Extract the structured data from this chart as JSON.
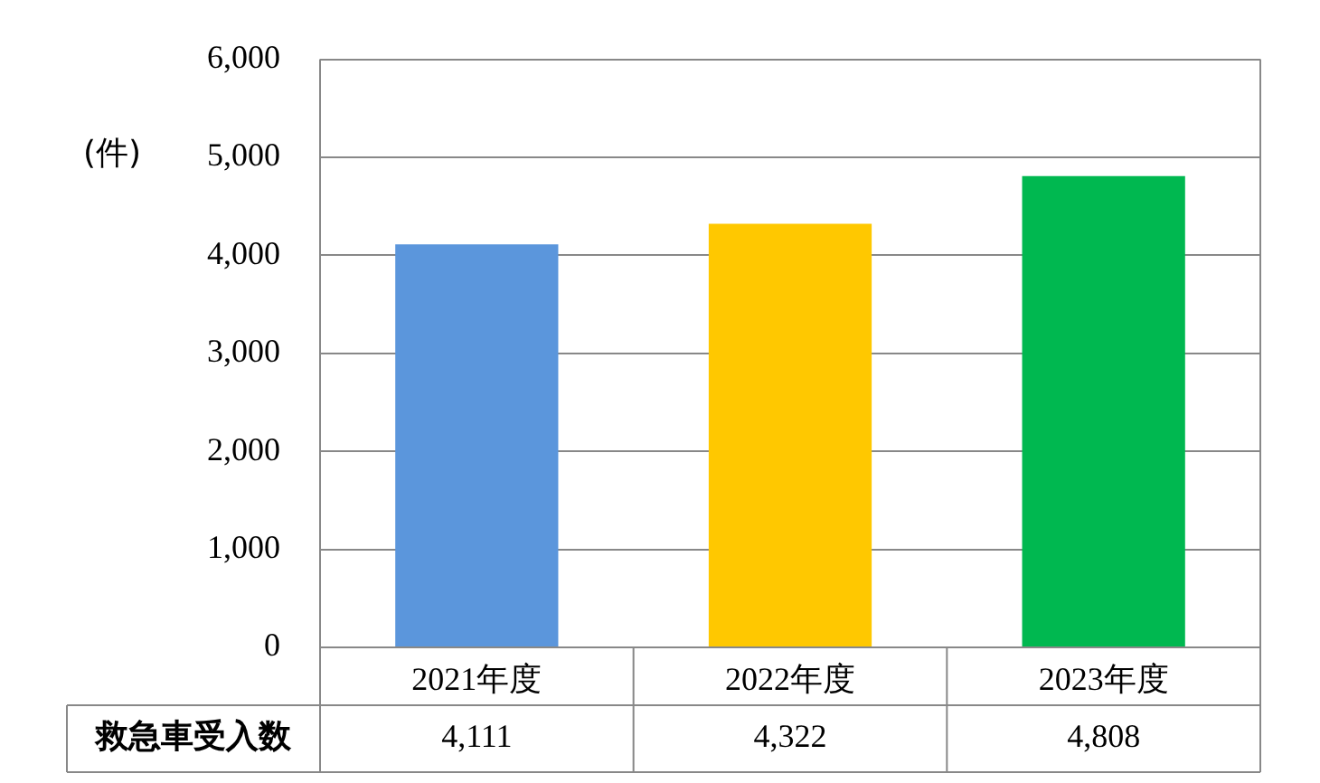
{
  "chart_data": {
    "type": "bar",
    "ylabel": "(件)",
    "categories": [
      "2021年度",
      "2022年度",
      "2023年度"
    ],
    "series": [
      {
        "name": "救急車受入数",
        "colors": [
          "#5b96dc",
          "#ffc800",
          "#00b850"
        ],
        "values": [
          4111,
          4322,
          4808
        ],
        "value_labels": [
          "4,111",
          "4,322",
          "4,808"
        ]
      }
    ],
    "ylim": [
      0,
      6000
    ],
    "yticks": [
      0,
      {
        "value": 1000,
        "label": "1,000"
      },
      {
        "value": 2000,
        "label": "2,000"
      },
      {
        "value": 3000,
        "label": "3,000"
      },
      {
        "value": 4000,
        "label": "4,000"
      },
      {
        "value": 5000,
        "label": "5,000"
      },
      {
        "value": 6000,
        "label": "6,000"
      }
    ],
    "grid": "y"
  }
}
